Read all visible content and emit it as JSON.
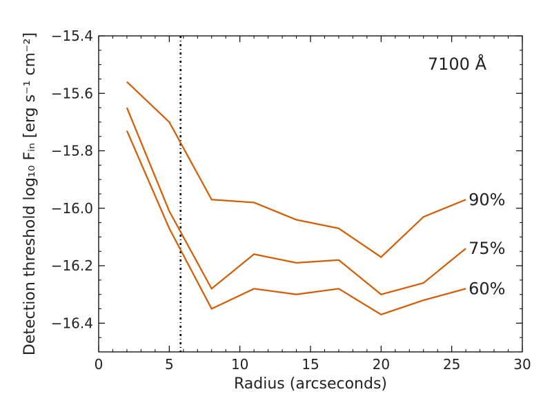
{
  "chart_data": {
    "type": "line",
    "xlabel": "Radius (arcseconds)",
    "ylabel": "Detection threshold log₁₀ Fᵢₙ [erg s⁻¹ cm⁻²]",
    "xlim": [
      0,
      30
    ],
    "ylim": [
      -16.5,
      -15.4
    ],
    "x_ticks": [
      0,
      5,
      10,
      15,
      20,
      25,
      30
    ],
    "x_tick_labels": [
      "0",
      "5",
      "10",
      "15",
      "20",
      "25",
      "30"
    ],
    "y_ticks": [
      -15.4,
      -15.6,
      -15.8,
      -16.0,
      -16.2,
      -16.4
    ],
    "y_tick_labels": [
      "−15.4",
      "−15.6",
      "−15.8",
      "−16.0",
      "−16.2",
      "−16.4"
    ],
    "annotation": "7100 Å",
    "vline_x": 5.8,
    "grid": false,
    "line_color": "#d2600a",
    "x": [
      2,
      5,
      8,
      11,
      14,
      17,
      20,
      23,
      26
    ],
    "series": [
      {
        "name": "90%",
        "values": [
          -15.56,
          -15.7,
          -15.97,
          -15.98,
          -16.04,
          -16.07,
          -16.17,
          -16.03,
          -15.97
        ]
      },
      {
        "name": "75%",
        "values": [
          -15.65,
          -16.01,
          -16.28,
          -16.16,
          -16.19,
          -16.18,
          -16.3,
          -16.26,
          -16.14
        ]
      },
      {
        "name": "60%",
        "values": [
          -15.73,
          -16.07,
          -16.35,
          -16.28,
          -16.3,
          -16.28,
          -16.37,
          -16.32,
          -16.28
        ]
      }
    ]
  }
}
